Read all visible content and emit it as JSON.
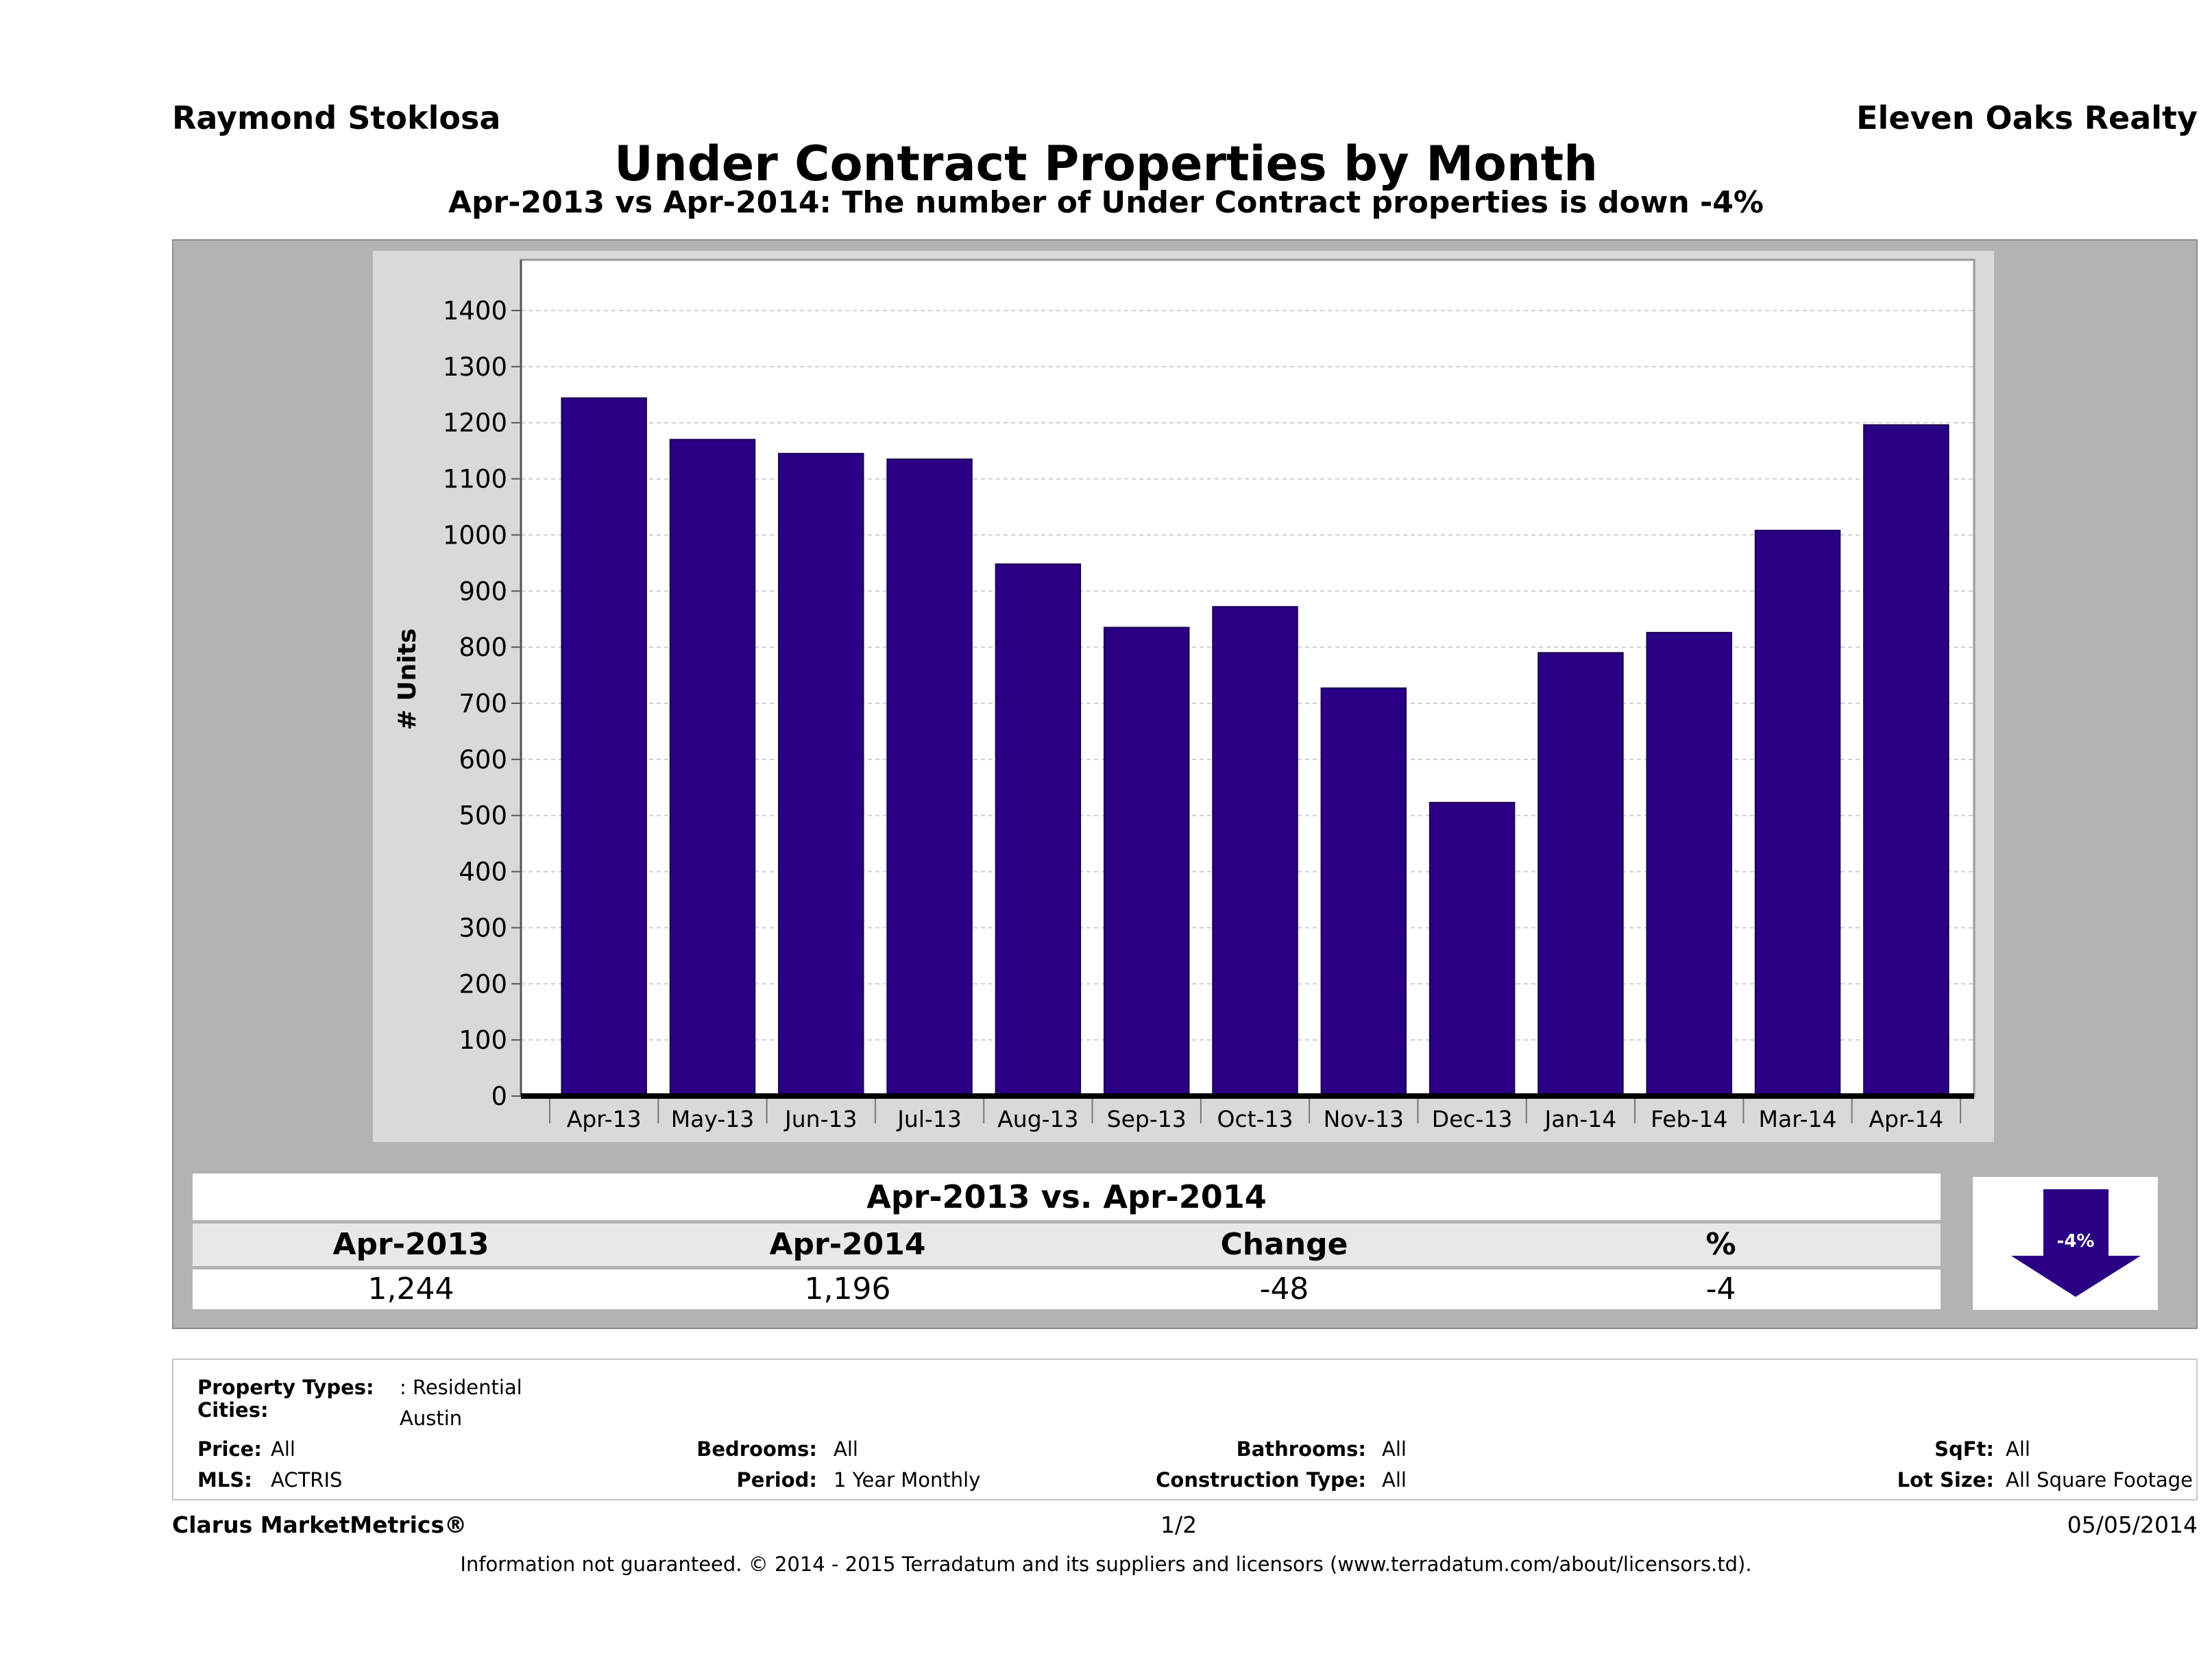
{
  "header": {
    "agent": "Raymond Stoklosa",
    "brokerage": "Eleven Oaks Realty",
    "title": "Under Contract Properties by Month",
    "subtitle": "Apr-2013 vs Apr-2014: The number of Under Contract  properties is down -4%"
  },
  "chart_data": {
    "type": "bar",
    "ylabel": "# Units",
    "xlabel": "",
    "categories": [
      "Apr-13",
      "May-13",
      "Jun-13",
      "Jul-13",
      "Aug-13",
      "Sep-13",
      "Oct-13",
      "Nov-13",
      "Dec-13",
      "Jan-14",
      "Feb-14",
      "Mar-14",
      "Apr-14"
    ],
    "values": [
      1244,
      1170,
      1145,
      1135,
      948,
      835,
      872,
      727,
      523,
      790,
      826,
      1008,
      1196
    ],
    "ylim": [
      0,
      1400
    ],
    "yticks": [
      0,
      100,
      200,
      300,
      400,
      500,
      600,
      700,
      800,
      900,
      1000,
      1100,
      1200,
      1300,
      1400
    ],
    "bar_color": "#2a0084",
    "grid": true
  },
  "summary": {
    "title": "Apr-2013 vs. Apr-2014",
    "headers": [
      "Apr-2013",
      "Apr-2014",
      "Change",
      "%"
    ],
    "values": [
      "1,244",
      "1,196",
      "-48",
      "-4"
    ],
    "arrow_label": "-4%",
    "arrow_icon": "down-arrow-icon"
  },
  "filters": {
    "property_types_label": "Property Types:",
    "property_types_value": ": Residential",
    "cities_label": "Cities:",
    "cities_value": "Austin",
    "price_label": "Price:",
    "price_value": "All",
    "mls_label": "MLS:",
    "mls_value": "ACTRIS",
    "bedrooms_label": "Bedrooms:",
    "bedrooms_value": "All",
    "period_label": "Period:",
    "period_value": "1 Year Monthly",
    "bathrooms_label": "Bathrooms:",
    "bathrooms_value": "All",
    "construction_label": "Construction Type:",
    "construction_value": "All",
    "sqft_label": "SqFt:",
    "sqft_value": "All",
    "lotsize_label": "Lot Size:",
    "lotsize_value": "All Square Footage"
  },
  "footer": {
    "product": "Clarus MarketMetrics®",
    "page": "1/2",
    "date": "05/05/2014",
    "disclaimer": "Information not guaranteed. © 2014 - 2015 Terradatum and its suppliers and licensors (www.terradatum.com/about/licensors.td)."
  }
}
